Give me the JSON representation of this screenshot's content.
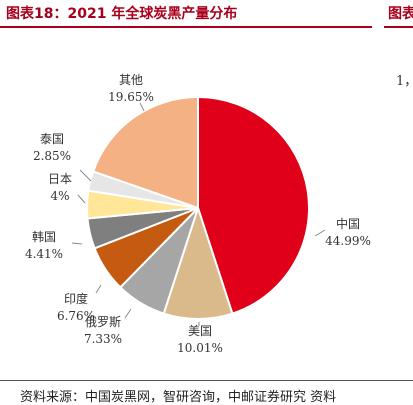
{
  "header": {
    "title": "图表18：2021 年全球炭黑产量分布",
    "title_right_clip": "图表"
  },
  "right_panel_clip": "1，",
  "footer": {
    "source": "资料来源：中国炭黑网，智研咨询，中邮证券研究  资料"
  },
  "chart_data": {
    "type": "pie",
    "title": "",
    "start_angle_deg": 0,
    "direction": "clockwise",
    "slices": [
      {
        "name": "中国",
        "value": 44.99,
        "label": "44.99%",
        "color": "#e00019"
      },
      {
        "name": "美国",
        "value": 10.01,
        "label": "10.01%",
        "color": "#dab98a"
      },
      {
        "name": "俄罗斯",
        "value": 7.33,
        "label": "7.33%",
        "color": "#a6a6a6"
      },
      {
        "name": "印度",
        "value": 6.76,
        "label": "6.76%",
        "color": "#c55a11"
      },
      {
        "name": "韩国",
        "value": 4.41,
        "label": "4.41%",
        "color": "#7f7f7f"
      },
      {
        "name": "日本",
        "value": 4.0,
        "label": "4%",
        "color": "#ffe699"
      },
      {
        "name": "泰国",
        "value": 2.85,
        "label": "2.85%",
        "color": "#e7e6e6"
      },
      {
        "name": "其他",
        "value": 19.65,
        "label": "19.65%",
        "color": "#f4b183"
      }
    ]
  }
}
